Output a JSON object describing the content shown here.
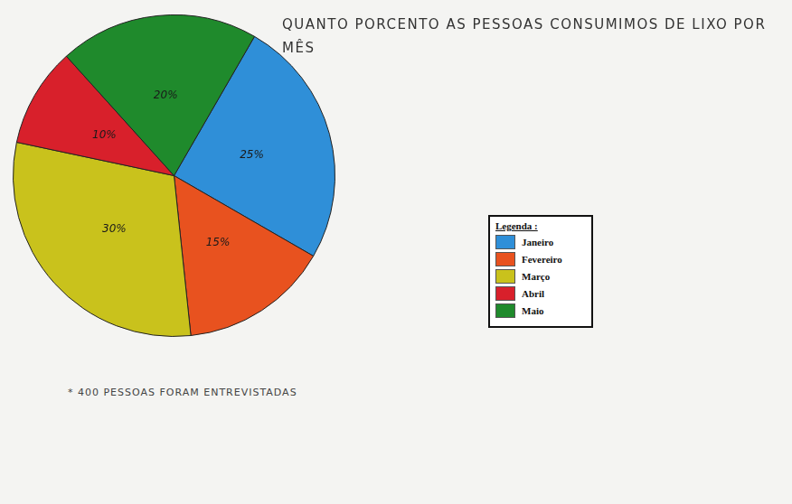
{
  "chart_data": {
    "type": "pie",
    "title": "QUANTO PORCENTO AS PESSOAS CONSUMIMOS DE LIXO POR MÊS",
    "categories": [
      "Janeiro",
      "Fevereiro",
      "Março",
      "Abril",
      "Maio"
    ],
    "values": [
      25,
      15,
      30,
      10,
      20
    ],
    "value_labels": [
      "25%",
      "15%",
      "30%",
      "10%",
      "20%"
    ],
    "colors": [
      "#2f8fd8",
      "#e8521f",
      "#c9c21c",
      "#d8202b",
      "#1f8a2c"
    ],
    "data_labels": true,
    "legend": "right",
    "legend_title": "Legenda :",
    "annotations": [
      "* 400 PESSOAS FORAM ENTREVISTADAS"
    ]
  }
}
